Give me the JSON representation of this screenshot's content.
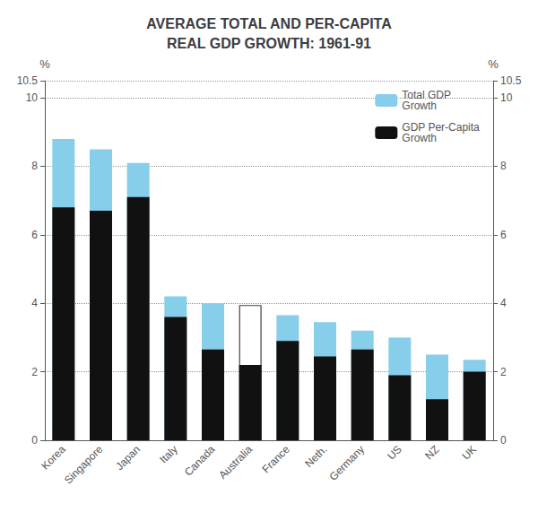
{
  "chart_data": {
    "type": "bar",
    "title": "AVERAGE TOTAL AND PER-CAPITA\nREAL GDP GROWTH: 1961-91",
    "categories": [
      "Korea",
      "Singapore",
      "Japan",
      "Italy",
      "Canada",
      "Australia",
      "France",
      "Neth.",
      "Germany",
      "US",
      "NZ",
      "UK"
    ],
    "series": [
      {
        "name": "Total GDP\nGrowth",
        "color": "#87CEEB",
        "colors": [
          "#87CEEB",
          "#87CEEB",
          "#87CEEB",
          "#87CEEB",
          "#87CEEB",
          "#ffffff",
          "#87CEEB",
          "#87CEEB",
          "#87CEEB",
          "#87CEEB",
          "#87CEEB",
          "#87CEEB"
        ],
        "values": [
          8.8,
          8.5,
          8.1,
          4.2,
          4.0,
          3.95,
          3.65,
          3.45,
          3.2,
          3.0,
          2.5,
          2.35
        ]
      },
      {
        "name": "GDP Per-Capita\nGrowth",
        "color": "#111111",
        "values": [
          6.8,
          6.7,
          7.1,
          3.6,
          2.65,
          2.2,
          2.9,
          2.45,
          2.65,
          1.9,
          1.2,
          2.0
        ]
      }
    ],
    "stacked": false,
    "ylabel": "%",
    "y2label": "%",
    "ylim": [
      0,
      10.5
    ],
    "yticks": [
      0,
      2,
      4,
      6,
      8,
      10
    ],
    "y2lim": [
      0,
      10.5
    ],
    "y2ticks": [
      0,
      2,
      4,
      6,
      8,
      10
    ],
    "grid": true,
    "legend": "upper right"
  }
}
